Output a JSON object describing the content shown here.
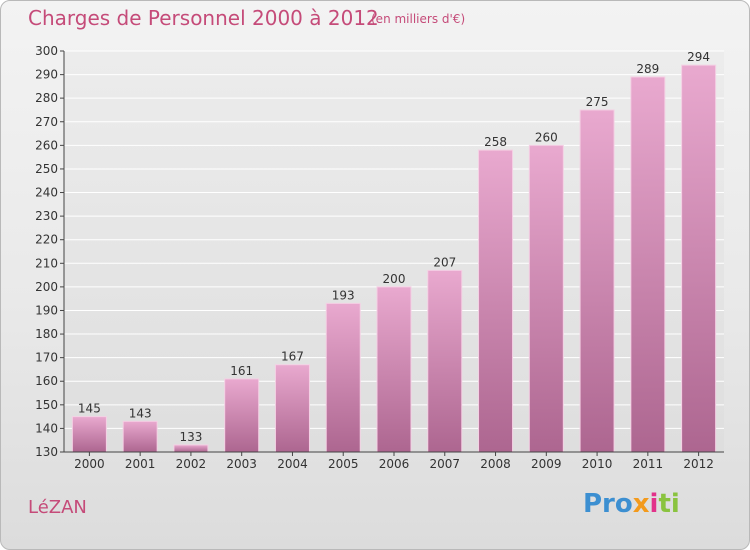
{
  "header": {
    "title": "Charges de Personnel 2000 à 2012",
    "subtitle": "(en milliers d'€)"
  },
  "footer": {
    "commune": "LéZAN",
    "logo": [
      "Pro",
      "x",
      "i",
      "ti"
    ]
  },
  "colors": {
    "accent": "#c54b79",
    "bar_top": "#e9a9cf",
    "bar_bottom": "#b06a93",
    "axis": "#444444",
    "grid": "#ffffff"
  },
  "chart_data": {
    "type": "bar",
    "title": "Charges de Personnel 2000 à 2012",
    "subtitle": "(en milliers d'€)",
    "categories": [
      "2000",
      "2001",
      "2002",
      "2003",
      "2004",
      "2005",
      "2006",
      "2007",
      "2008",
      "2009",
      "2010",
      "2011",
      "2012"
    ],
    "values": [
      145,
      143,
      133,
      161,
      167,
      193,
      200,
      207,
      258,
      260,
      275,
      289,
      294
    ],
    "ylim": [
      130,
      300
    ],
    "yticks": [
      130,
      140,
      150,
      160,
      170,
      180,
      190,
      200,
      210,
      220,
      230,
      240,
      250,
      260,
      270,
      280,
      290,
      300
    ],
    "grid": "horizontal",
    "data_labels": true,
    "xlabel": "",
    "ylabel": ""
  }
}
